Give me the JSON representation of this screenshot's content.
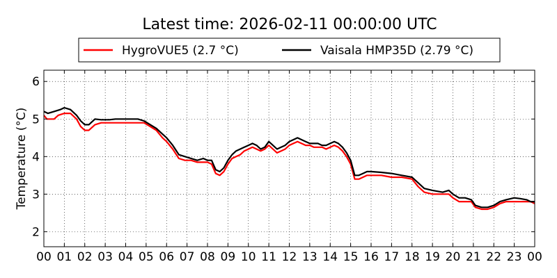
{
  "chart_data": {
    "type": "line",
    "title": "Latest time: 2026-02-11 00:00:00 UTC",
    "xlabel": "",
    "ylabel": "Temperature (°C)",
    "xlim": [
      0,
      24
    ],
    "ylim": [
      1.6,
      6.3
    ],
    "x_ticks": [
      0,
      1,
      2,
      3,
      4,
      5,
      6,
      7,
      8,
      9,
      10,
      11,
      12,
      13,
      14,
      15,
      16,
      17,
      18,
      19,
      20,
      21,
      22,
      23,
      24
    ],
    "x_tick_labels": [
      "00",
      "01",
      "02",
      "03",
      "04",
      "05",
      "06",
      "07",
      "08",
      "09",
      "10",
      "11",
      "12",
      "13",
      "14",
      "15",
      "16",
      "17",
      "18",
      "19",
      "20",
      "21",
      "22",
      "23",
      "00"
    ],
    "y_ticks": [
      2,
      3,
      4,
      5,
      6
    ],
    "y_tick_labels": [
      "2",
      "3",
      "4",
      "5",
      "6"
    ],
    "grid": true,
    "legend_placement": "top",
    "series": [
      {
        "name": "HygroVUE5 (2.7 °C)",
        "color": "#ff0000",
        "x": [
          0,
          0.15,
          0.5,
          0.7,
          1.0,
          1.3,
          1.6,
          1.8,
          2.0,
          2.2,
          2.5,
          2.8,
          3.2,
          3.5,
          3.8,
          4.2,
          4.6,
          4.9,
          5.2,
          5.5,
          5.8,
          6.0,
          6.3,
          6.6,
          6.9,
          7.2,
          7.5,
          7.8,
          8.0,
          8.2,
          8.4,
          8.6,
          8.8,
          9.0,
          9.2,
          9.4,
          9.6,
          9.8,
          10.0,
          10.2,
          10.4,
          10.6,
          10.8,
          11.0,
          11.2,
          11.4,
          11.6,
          11.8,
          12.0,
          12.2,
          12.4,
          12.6,
          12.8,
          13.0,
          13.2,
          13.4,
          13.6,
          13.8,
          14.0,
          14.2,
          14.4,
          14.6,
          14.8,
          15.0,
          15.2,
          15.4,
          15.6,
          15.8,
          16.0,
          16.5,
          17.0,
          17.5,
          18.0,
          18.3,
          18.6,
          19.0,
          19.5,
          19.8,
          20.0,
          20.3,
          20.6,
          20.9,
          21.1,
          21.4,
          21.7,
          22.0,
          22.3,
          22.6,
          23.0,
          23.3,
          23.6,
          23.8,
          24.0
        ],
        "y": [
          5.1,
          5.0,
          5.0,
          5.1,
          5.15,
          5.15,
          5.0,
          4.8,
          4.7,
          4.7,
          4.85,
          4.9,
          4.9,
          4.9,
          4.9,
          4.9,
          4.9,
          4.9,
          4.8,
          4.7,
          4.5,
          4.4,
          4.2,
          3.95,
          3.9,
          3.9,
          3.85,
          3.85,
          3.85,
          3.8,
          3.55,
          3.5,
          3.6,
          3.8,
          3.95,
          4.0,
          4.05,
          4.15,
          4.2,
          4.25,
          4.2,
          4.15,
          4.2,
          4.3,
          4.2,
          4.1,
          4.15,
          4.2,
          4.3,
          4.35,
          4.4,
          4.35,
          4.3,
          4.3,
          4.25,
          4.25,
          4.25,
          4.2,
          4.25,
          4.3,
          4.25,
          4.15,
          4.0,
          3.8,
          3.4,
          3.4,
          3.45,
          3.5,
          3.5,
          3.5,
          3.45,
          3.45,
          3.4,
          3.2,
          3.05,
          3.0,
          3.0,
          3.0,
          2.9,
          2.8,
          2.8,
          2.8,
          2.65,
          2.6,
          2.6,
          2.65,
          2.75,
          2.8,
          2.8,
          2.8,
          2.8,
          2.8,
          2.75
        ]
      },
      {
        "name": "Vaisala HMP35D (2.79 °C)",
        "color": "#000000",
        "x": [
          0,
          0.2,
          0.5,
          0.8,
          1.0,
          1.3,
          1.6,
          1.8,
          2.0,
          2.2,
          2.5,
          2.8,
          3.2,
          3.5,
          3.8,
          4.2,
          4.6,
          4.9,
          5.2,
          5.5,
          5.8,
          6.0,
          6.3,
          6.6,
          6.9,
          7.2,
          7.5,
          7.8,
          8.0,
          8.2,
          8.4,
          8.6,
          8.8,
          9.0,
          9.2,
          9.4,
          9.6,
          9.8,
          10.0,
          10.2,
          10.4,
          10.6,
          10.8,
          11.0,
          11.2,
          11.4,
          11.6,
          11.8,
          12.0,
          12.2,
          12.4,
          12.6,
          12.8,
          13.0,
          13.2,
          13.4,
          13.6,
          13.8,
          14.0,
          14.2,
          14.4,
          14.6,
          14.8,
          15.0,
          15.2,
          15.4,
          15.6,
          15.8,
          16.0,
          16.5,
          17.0,
          17.5,
          18.0,
          18.3,
          18.6,
          19.0,
          19.5,
          19.8,
          20.0,
          20.3,
          20.6,
          20.9,
          21.1,
          21.4,
          21.7,
          22.0,
          22.3,
          22.6,
          23.0,
          23.3,
          23.6,
          23.8,
          24.0
        ],
        "y": [
          5.2,
          5.15,
          5.2,
          5.25,
          5.3,
          5.25,
          5.1,
          4.95,
          4.85,
          4.85,
          5.0,
          4.98,
          4.98,
          5.0,
          5.0,
          5.0,
          5.0,
          4.95,
          4.85,
          4.75,
          4.6,
          4.5,
          4.3,
          4.05,
          4.0,
          3.95,
          3.9,
          3.95,
          3.9,
          3.9,
          3.65,
          3.6,
          3.7,
          3.9,
          4.05,
          4.15,
          4.2,
          4.25,
          4.3,
          4.35,
          4.3,
          4.2,
          4.25,
          4.4,
          4.3,
          4.2,
          4.25,
          4.3,
          4.4,
          4.45,
          4.5,
          4.45,
          4.4,
          4.35,
          4.35,
          4.35,
          4.3,
          4.3,
          4.35,
          4.4,
          4.35,
          4.25,
          4.1,
          3.9,
          3.5,
          3.5,
          3.55,
          3.6,
          3.6,
          3.58,
          3.55,
          3.5,
          3.45,
          3.3,
          3.15,
          3.1,
          3.05,
          3.1,
          3.0,
          2.9,
          2.9,
          2.85,
          2.7,
          2.65,
          2.65,
          2.7,
          2.8,
          2.85,
          2.9,
          2.88,
          2.85,
          2.8,
          2.8
        ]
      }
    ]
  }
}
